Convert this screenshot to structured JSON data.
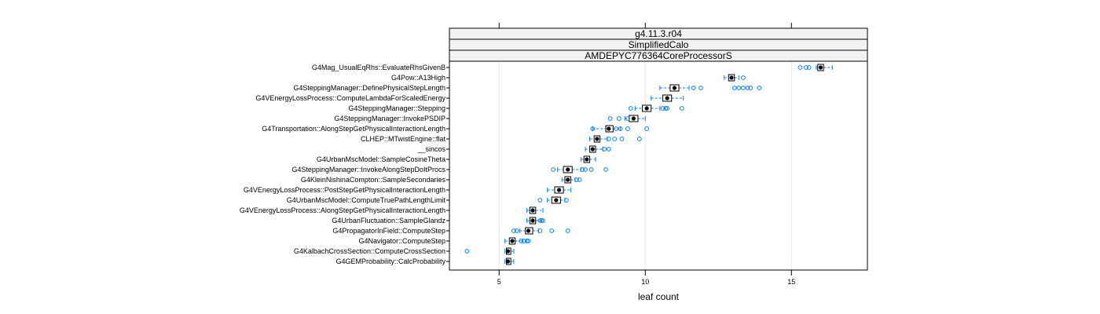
{
  "chart_data": {
    "type": "boxplot",
    "title": "",
    "strips": [
      "g4.11.3.r04",
      "SimplifiedCalo",
      "AMDEPYC776364CoreProcessorS"
    ],
    "xlabel": "leaf count",
    "ylabel": "",
    "xlim": [
      3.3,
      17.6
    ],
    "xticks": [
      5,
      10,
      15
    ],
    "grid": true,
    "colors": {
      "outlier": "#0080ff",
      "whisker": "#0080ff",
      "box": "#000000",
      "median": "#000000",
      "panel_border": "#000000",
      "strip_bg": "#f2f2f2",
      "grid": "#e6e6e6"
    },
    "categories": [
      "G4Mag_UsualEqRhs::EvaluateRhsGivenB",
      "G4Pow::A13High",
      "G4SteppingManager::DefinePhysicalStepLength",
      "G4VEnergyLossProcess::ComputeLambdaForScaledEnergy",
      "G4SteppingManager::Stepping",
      "G4SteppingManager::InvokePSDIP",
      "G4Transportation::AlongStepGetPhysicalInteractionLength",
      "CLHEP::MTwistEngine::flat",
      "__sincos",
      "G4UrbanMscModel::SampleCosineTheta",
      "G4SteppingManager::InvokeAlongStepDoItProcs",
      "G4KleinNishinaCompton::SampleSecondaries",
      "G4VEnergyLossProcess::PostStepGetPhysicalInteractionLength",
      "G4UrbanMscModel::ComputeTruePathLengthLimit",
      "G4VEnergyLossProcess::AlongStepGetPhysicalInteractionLength",
      "G4UrbanFluctuation::SampleGlandz",
      "G4PropagatorInField::ComputeStep",
      "G4Navigator::ComputeStep",
      "G4KalbachCrossSection::ComputeCrossSection",
      "G4GEMProbability::CalcProbability"
    ],
    "boxes": [
      {
        "wlo": 15.85,
        "q1": 15.9,
        "med": 16.0,
        "q3": 16.1,
        "whi": 16.4,
        "outliers": [
          15.3,
          15.5,
          15.6
        ]
      },
      {
        "wlo": 12.7,
        "q1": 12.85,
        "med": 12.95,
        "q3": 13.05,
        "whi": 13.2,
        "outliers": [
          13.35
        ]
      },
      {
        "wlo": 10.5,
        "q1": 10.85,
        "med": 11.0,
        "q3": 11.15,
        "whi": 11.5,
        "outliers": [
          11.65,
          11.9,
          13.05,
          13.2,
          13.35,
          13.5,
          13.6,
          13.9
        ]
      },
      {
        "wlo": 10.2,
        "q1": 10.6,
        "med": 10.75,
        "q3": 10.9,
        "whi": 11.3,
        "outliers": []
      },
      {
        "wlo": 9.65,
        "q1": 9.9,
        "med": 10.05,
        "q3": 10.2,
        "whi": 10.5,
        "outliers": [
          9.5,
          10.6,
          10.7,
          10.75,
          11.25
        ]
      },
      {
        "wlo": 9.3,
        "q1": 9.45,
        "med": 9.6,
        "q3": 9.75,
        "whi": 10.0,
        "outliers": [
          8.8,
          9.1,
          9.4
        ]
      },
      {
        "wlo": 8.2,
        "q1": 8.65,
        "med": 8.75,
        "q3": 8.9,
        "whi": 9.15,
        "outliers": [
          8.2,
          9.0,
          9.15,
          9.4,
          10.05
        ]
      },
      {
        "wlo": 8.1,
        "q1": 8.25,
        "med": 8.35,
        "q3": 8.45,
        "whi": 8.7,
        "outliers": [
          8.75,
          8.95,
          9.2,
          9.8
        ]
      },
      {
        "wlo": 7.95,
        "q1": 8.1,
        "med": 8.2,
        "q3": 8.3,
        "whi": 8.55,
        "outliers": [
          8.6,
          8.75
        ]
      },
      {
        "wlo": 7.8,
        "q1": 7.9,
        "med": 8.0,
        "q3": 8.1,
        "whi": 8.3,
        "outliers": []
      },
      {
        "wlo": 7.0,
        "q1": 7.2,
        "med": 7.35,
        "q3": 7.5,
        "whi": 7.8,
        "outliers": [
          6.85,
          7.85,
          7.95,
          8.15,
          8.65
        ]
      },
      {
        "wlo": 7.15,
        "q1": 7.25,
        "med": 7.35,
        "q3": 7.45,
        "whi": 7.6,
        "outliers": [
          7.65,
          7.75
        ]
      },
      {
        "wlo": 6.65,
        "q1": 6.9,
        "med": 7.05,
        "q3": 7.2,
        "whi": 7.45,
        "outliers": []
      },
      {
        "wlo": 6.65,
        "q1": 6.8,
        "med": 6.95,
        "q3": 7.1,
        "whi": 7.25,
        "outliers": [
          6.4,
          7.3
        ]
      },
      {
        "wlo": 5.95,
        "q1": 6.05,
        "med": 6.15,
        "q3": 6.25,
        "whi": 6.5,
        "outliers": []
      },
      {
        "wlo": 5.95,
        "q1": 6.05,
        "med": 6.15,
        "q3": 6.25,
        "whi": 6.45,
        "outliers": [
          6.4,
          6.45,
          6.5
        ]
      },
      {
        "wlo": 5.7,
        "q1": 5.9,
        "med": 6.0,
        "q3": 6.15,
        "whi": 6.35,
        "outliers": [
          5.5,
          5.6,
          6.4,
          6.8,
          7.35
        ]
      },
      {
        "wlo": 5.2,
        "q1": 5.35,
        "med": 5.45,
        "q3": 5.55,
        "whi": 5.8,
        "outliers": [
          5.75,
          5.85,
          5.95,
          6.0
        ]
      },
      {
        "wlo": 5.2,
        "q1": 5.25,
        "med": 5.3,
        "q3": 5.4,
        "whi": 5.5,
        "outliers": [
          3.9
        ]
      },
      {
        "wlo": 5.2,
        "q1": 5.25,
        "med": 5.3,
        "q3": 5.4,
        "whi": 5.5,
        "outliers": []
      }
    ]
  }
}
